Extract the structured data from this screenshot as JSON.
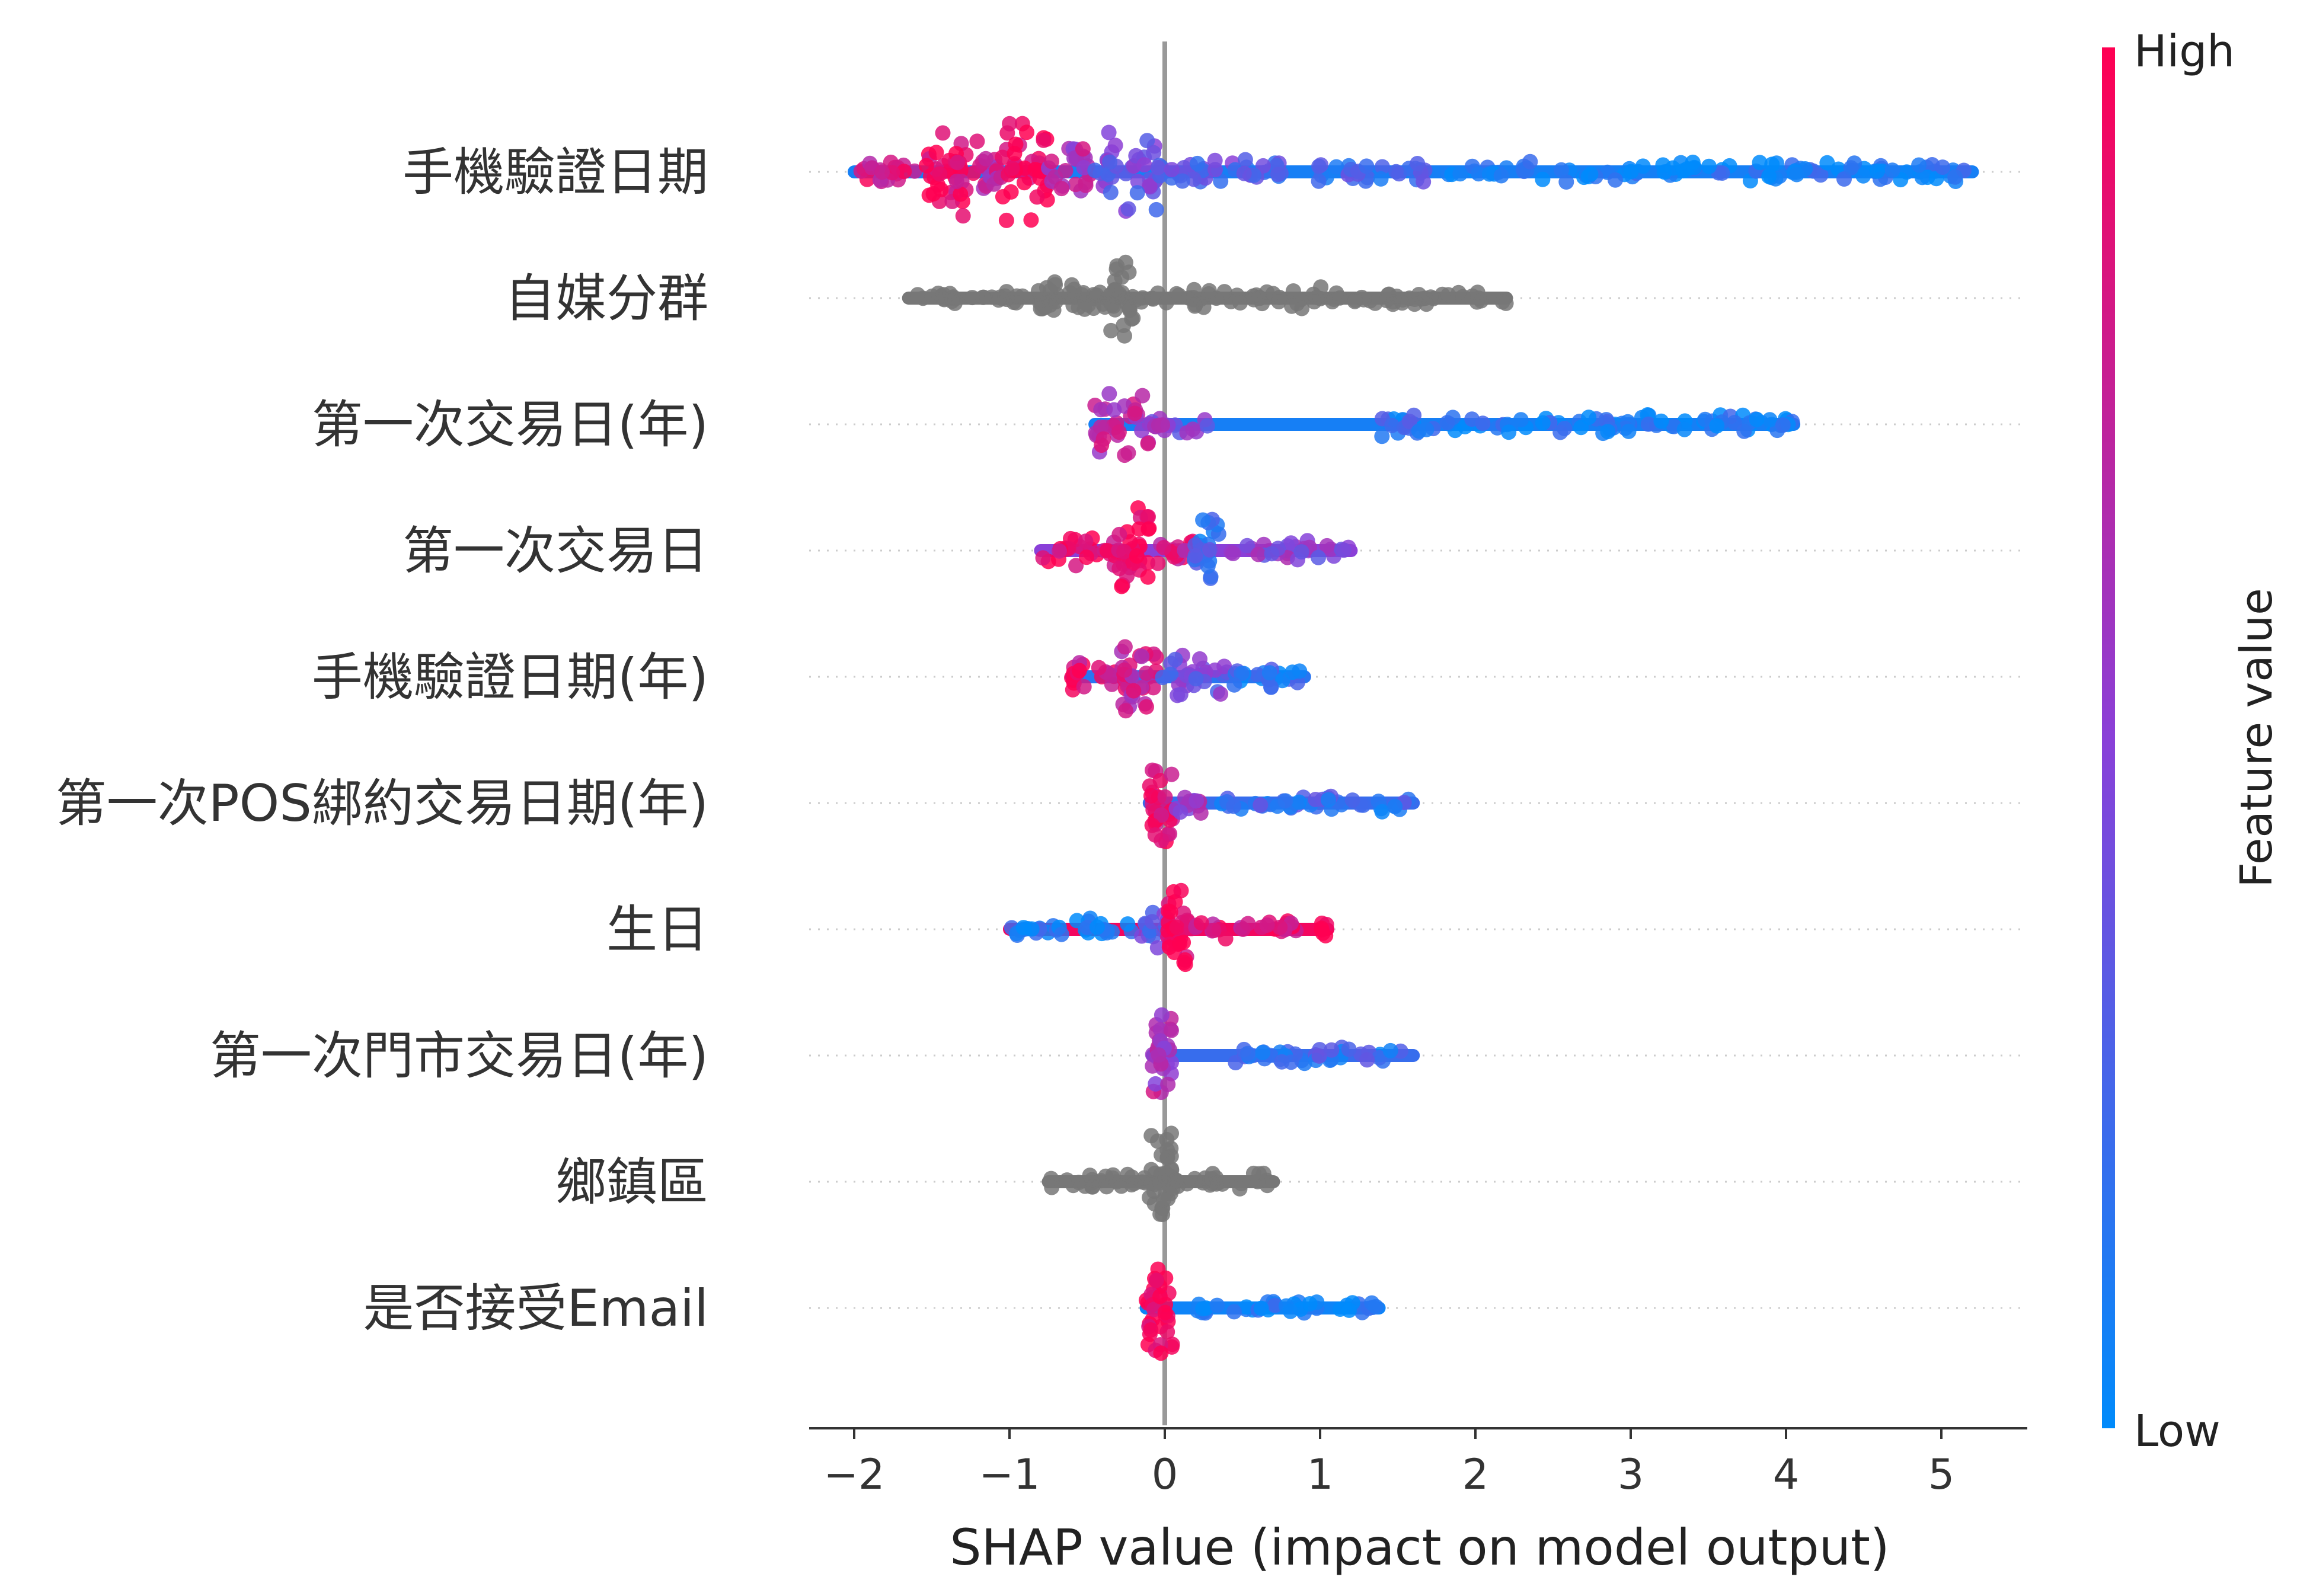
{
  "chart_data": {
    "type": "scatter",
    "subtype": "shap-beeswarm-summary",
    "xlabel": "SHAP value (impact on model output)",
    "xlim": [
      -2.3,
      5.5
    ],
    "xticks": [
      {
        "value": -2,
        "label": "−2"
      },
      {
        "value": -1,
        "label": "−1"
      },
      {
        "value": 0,
        "label": "0"
      },
      {
        "value": 1,
        "label": "1"
      },
      {
        "value": 2,
        "label": "2"
      },
      {
        "value": 3,
        "label": "3"
      },
      {
        "value": 4,
        "label": "4"
      },
      {
        "value": 5,
        "label": "5"
      }
    ],
    "zero_line": true,
    "row_gridlines": "dotted",
    "colorbar": {
      "title": "Feature value",
      "high_label": "High",
      "low_label": "Low",
      "high_color": "#ff0052",
      "mid_color": "#8a40d8",
      "low_color": "#008bfb"
    },
    "missing_color": "#777777",
    "features": [
      {
        "name": "手機驗證日期",
        "min": -2.0,
        "max": 5.2,
        "segments": [
          {
            "from": -2.0,
            "to": -1.6,
            "h": 0.25,
            "c": 0.85
          },
          {
            "from": -1.55,
            "to": -1.2,
            "h": 0.9,
            "c": 0.9
          },
          {
            "from": -1.2,
            "to": -1.05,
            "h": 0.4,
            "c": 0.7
          },
          {
            "from": -1.05,
            "to": -0.75,
            "h": 1.0,
            "c": 0.95
          },
          {
            "from": -0.75,
            "to": -0.45,
            "h": 0.45,
            "c": 0.65
          },
          {
            "from": -0.45,
            "to": -0.05,
            "h": 0.75,
            "c": 0.4
          },
          {
            "from": -0.05,
            "to": 0.5,
            "h": 0.3,
            "c": 0.35
          },
          {
            "from": 0.5,
            "to": 1.7,
            "h": 0.25,
            "c": 0.25
          },
          {
            "from": 1.7,
            "to": 5.2,
            "h": 0.2,
            "c": 0.08
          }
        ]
      },
      {
        "name": "自媒分群",
        "min": -1.65,
        "max": 2.2,
        "missing": true,
        "segments": [
          {
            "from": -1.65,
            "to": -0.8,
            "h": 0.15,
            "c": -1
          },
          {
            "from": -0.8,
            "to": -0.55,
            "h": 0.4,
            "c": -1
          },
          {
            "from": -0.55,
            "to": -0.35,
            "h": 0.25,
            "c": -1
          },
          {
            "from": -0.35,
            "to": -0.2,
            "h": 0.75,
            "c": -1
          },
          {
            "from": -0.2,
            "to": 1.2,
            "h": 0.22,
            "c": -1
          },
          {
            "from": 1.2,
            "to": 2.2,
            "h": 0.15,
            "c": -1
          }
        ]
      },
      {
        "name": "第一次交易日(年)",
        "min": -0.45,
        "max": 4.05,
        "segments": [
          {
            "from": -0.45,
            "to": -0.1,
            "h": 0.7,
            "c": 0.7
          },
          {
            "from": -0.1,
            "to": 0.28,
            "h": 0.2,
            "c": 0.5
          },
          {
            "from": 1.38,
            "to": 1.65,
            "h": 0.25,
            "c": 0.15
          },
          {
            "from": 1.65,
            "to": 4.05,
            "h": 0.18,
            "c": 0.08
          }
        ]
      },
      {
        "name": "第一次交易日",
        "min": -0.8,
        "max": 1.2,
        "segments": [
          {
            "from": -0.8,
            "to": -0.3,
            "h": 0.3,
            "c": 0.9
          },
          {
            "from": -0.3,
            "to": -0.1,
            "h": 0.8,
            "c": 0.95
          },
          {
            "from": -0.1,
            "to": 0.18,
            "h": 0.25,
            "c": 0.8
          },
          {
            "from": 0.18,
            "to": 0.35,
            "h": 0.7,
            "c": 0.2
          },
          {
            "from": 0.35,
            "to": 1.2,
            "h": 0.2,
            "c": 0.5
          }
        ]
      },
      {
        "name": "手機驗證日期(年)",
        "min": -0.6,
        "max": 0.9,
        "segments": [
          {
            "from": -0.6,
            "to": -0.3,
            "h": 0.3,
            "c": 0.85
          },
          {
            "from": -0.3,
            "to": -0.05,
            "h": 0.8,
            "c": 0.75
          },
          {
            "from": -0.05,
            "to": 0.4,
            "h": 0.5,
            "c": 0.4
          },
          {
            "from": 0.4,
            "to": 0.9,
            "h": 0.2,
            "c": 0.15
          }
        ]
      },
      {
        "name": "第一次POS綁約交易日期(年)",
        "min": -0.1,
        "max": 1.6,
        "segments": [
          {
            "from": -0.1,
            "to": 0.05,
            "h": 0.8,
            "c": 0.9
          },
          {
            "from": 0.05,
            "to": 0.25,
            "h": 0.2,
            "c": 0.6
          },
          {
            "from": 0.35,
            "to": 1.6,
            "h": 0.18,
            "c": 0.2
          }
        ]
      },
      {
        "name": "生日",
        "min": -1.0,
        "max": 1.05,
        "segments": [
          {
            "from": -1.0,
            "to": -0.15,
            "h": 0.2,
            "c": 0.1
          },
          {
            "from": -0.15,
            "to": 0.02,
            "h": 0.35,
            "c": 0.35
          },
          {
            "from": 0.02,
            "to": 0.15,
            "h": 0.85,
            "c": 0.95
          },
          {
            "from": 0.15,
            "to": 0.85,
            "h": 0.2,
            "c": 0.85
          },
          {
            "from": 1.0,
            "to": 1.05,
            "h": 0.15,
            "c": 0.95
          }
        ]
      },
      {
        "name": "第一次門市交易日(年)",
        "min": -0.08,
        "max": 1.6,
        "segments": [
          {
            "from": -0.08,
            "to": 0.06,
            "h": 0.8,
            "c": 0.65
          },
          {
            "from": 0.42,
            "to": 1.6,
            "h": 0.18,
            "c": 0.2
          }
        ]
      },
      {
        "name": "鄉鎮區",
        "min": -0.75,
        "max": 0.7,
        "missing": true,
        "segments": [
          {
            "from": -0.75,
            "to": -0.1,
            "h": 0.18,
            "c": -1
          },
          {
            "from": -0.1,
            "to": 0.05,
            "h": 0.95,
            "c": -1
          },
          {
            "from": 0.05,
            "to": 0.7,
            "h": 0.18,
            "c": -1
          }
        ]
      },
      {
        "name": "是否接受Email",
        "min": -0.12,
        "max": 1.38,
        "segments": [
          {
            "from": -0.12,
            "to": 0.05,
            "h": 0.9,
            "c": 1.0
          },
          {
            "from": 0.2,
            "to": 1.38,
            "h": 0.16,
            "c": 0.05
          }
        ]
      }
    ]
  }
}
